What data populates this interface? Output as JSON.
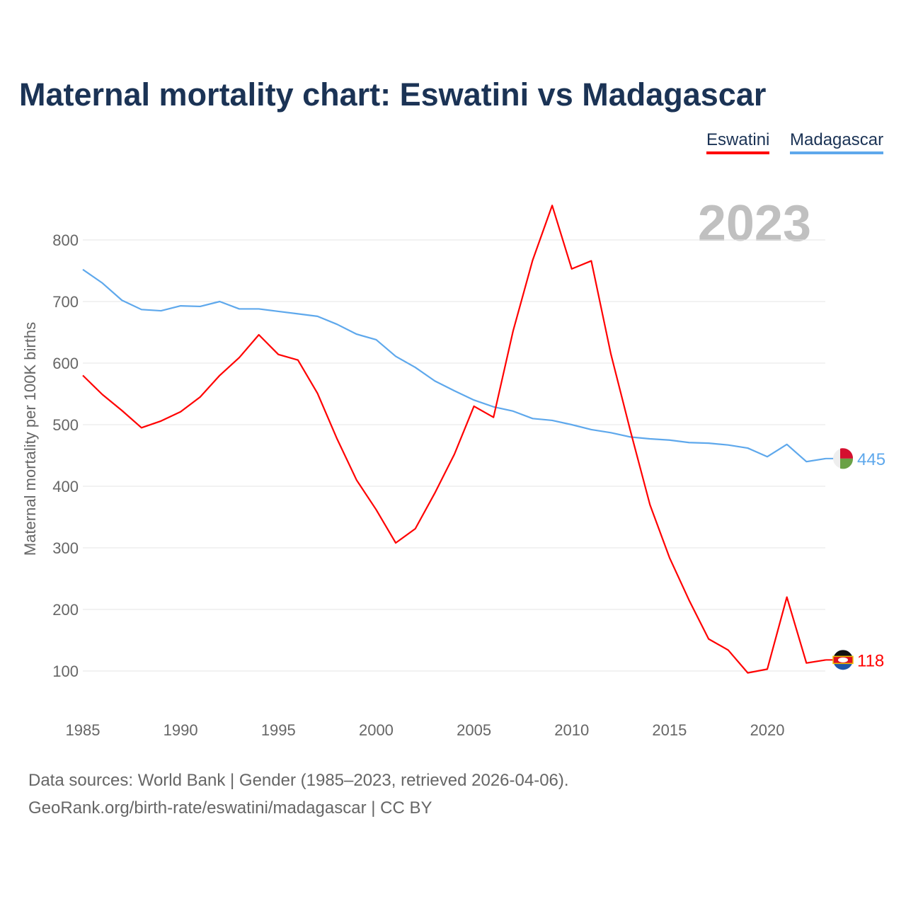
{
  "title": "Maternal mortality chart: Eswatini vs Madagascar",
  "footer": {
    "line1": "Data sources: World Bank | Gender (1985–2023, retrieved 2026-04-06).",
    "line2": "GeoRank.org/birth-rate/eswatini/madagascar | CC BY"
  },
  "chart_data": {
    "type": "line",
    "title": "Maternal mortality chart: Eswatini vs Madagascar",
    "xlabel": "",
    "ylabel": "Maternal mortality per 100K births",
    "year_label": "2023",
    "xlim": [
      1985,
      2023
    ],
    "ylim": [
      100,
      800
    ],
    "x_ticks": [
      "1985",
      "1990",
      "1995",
      "2000",
      "2005",
      "2010",
      "2015",
      "2020"
    ],
    "y_ticks": [
      "100",
      "200",
      "300",
      "400",
      "500",
      "600",
      "700",
      "800"
    ],
    "grid": true,
    "legend_position": "top-right",
    "x": [
      1985,
      1986,
      1987,
      1988,
      1989,
      1990,
      1991,
      1992,
      1993,
      1994,
      1995,
      1996,
      1997,
      1998,
      1999,
      2000,
      2001,
      2002,
      2003,
      2004,
      2005,
      2006,
      2007,
      2008,
      2009,
      2010,
      2011,
      2012,
      2013,
      2014,
      2015,
      2016,
      2017,
      2018,
      2019,
      2020,
      2021,
      2022,
      2023
    ],
    "series": [
      {
        "name": "Eswatini",
        "color": "#ff0000",
        "end_label": "118",
        "values": [
          580,
          549,
          523,
          495,
          506,
          521,
          545,
          580,
          609,
          646,
          614,
          605,
          551,
          477,
          410,
          362,
          308,
          331,
          389,
          452,
          530,
          512,
          652,
          767,
          856,
          753,
          766,
          615,
          490,
          370,
          284,
          215,
          152,
          134,
          97,
          103,
          220,
          113,
          118
        ]
      },
      {
        "name": "Madagascar",
        "color": "#5ea8ec",
        "end_label": "445",
        "values": [
          752,
          730,
          702,
          687,
          685,
          693,
          692,
          700,
          688,
          688,
          684,
          680,
          676,
          663,
          647,
          638,
          611,
          593,
          571,
          555,
          540,
          529,
          522,
          510,
          507,
          500,
          492,
          487,
          480,
          477,
          475,
          471,
          470,
          467,
          462,
          448,
          468,
          440,
          445
        ]
      }
    ]
  }
}
